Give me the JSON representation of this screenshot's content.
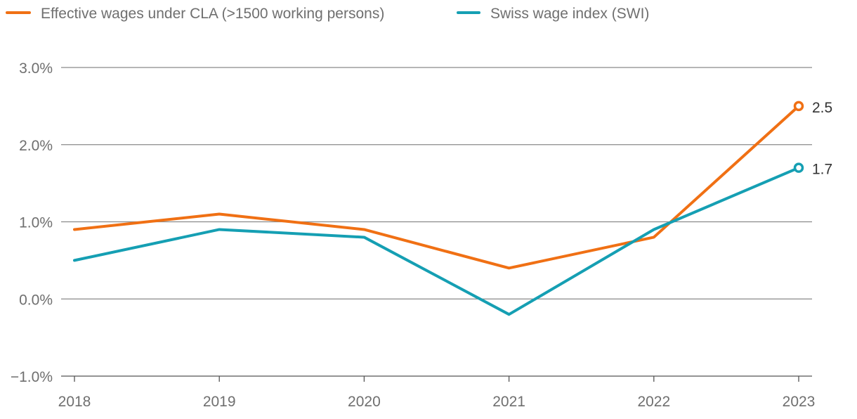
{
  "chart_data": {
    "type": "line",
    "title": "",
    "xlabel": "",
    "ylabel": "",
    "x": [
      "2018",
      "2019",
      "2020",
      "2021",
      "2022",
      "2023"
    ],
    "ylim": [
      -1.0,
      3.0
    ],
    "yticks": [
      -1.0,
      0.0,
      1.0,
      2.0,
      3.0
    ],
    "ytick_labels": [
      "−1.0%",
      "0.0%",
      "1.0%",
      "2.0%",
      "3.0%"
    ],
    "grid": true,
    "legend_position": "top-left",
    "series": [
      {
        "name": "Effective wages under CLA (>1500 working persons)",
        "color": "#f07014",
        "values": [
          0.9,
          1.1,
          0.9,
          0.4,
          0.8,
          2.5
        ],
        "end_label": "2.5"
      },
      {
        "name": "Swiss wage index (SWI)",
        "color": "#159fb3",
        "values": [
          0.5,
          0.9,
          0.8,
          -0.2,
          0.9,
          1.7
        ],
        "end_label": "1.7"
      }
    ]
  }
}
